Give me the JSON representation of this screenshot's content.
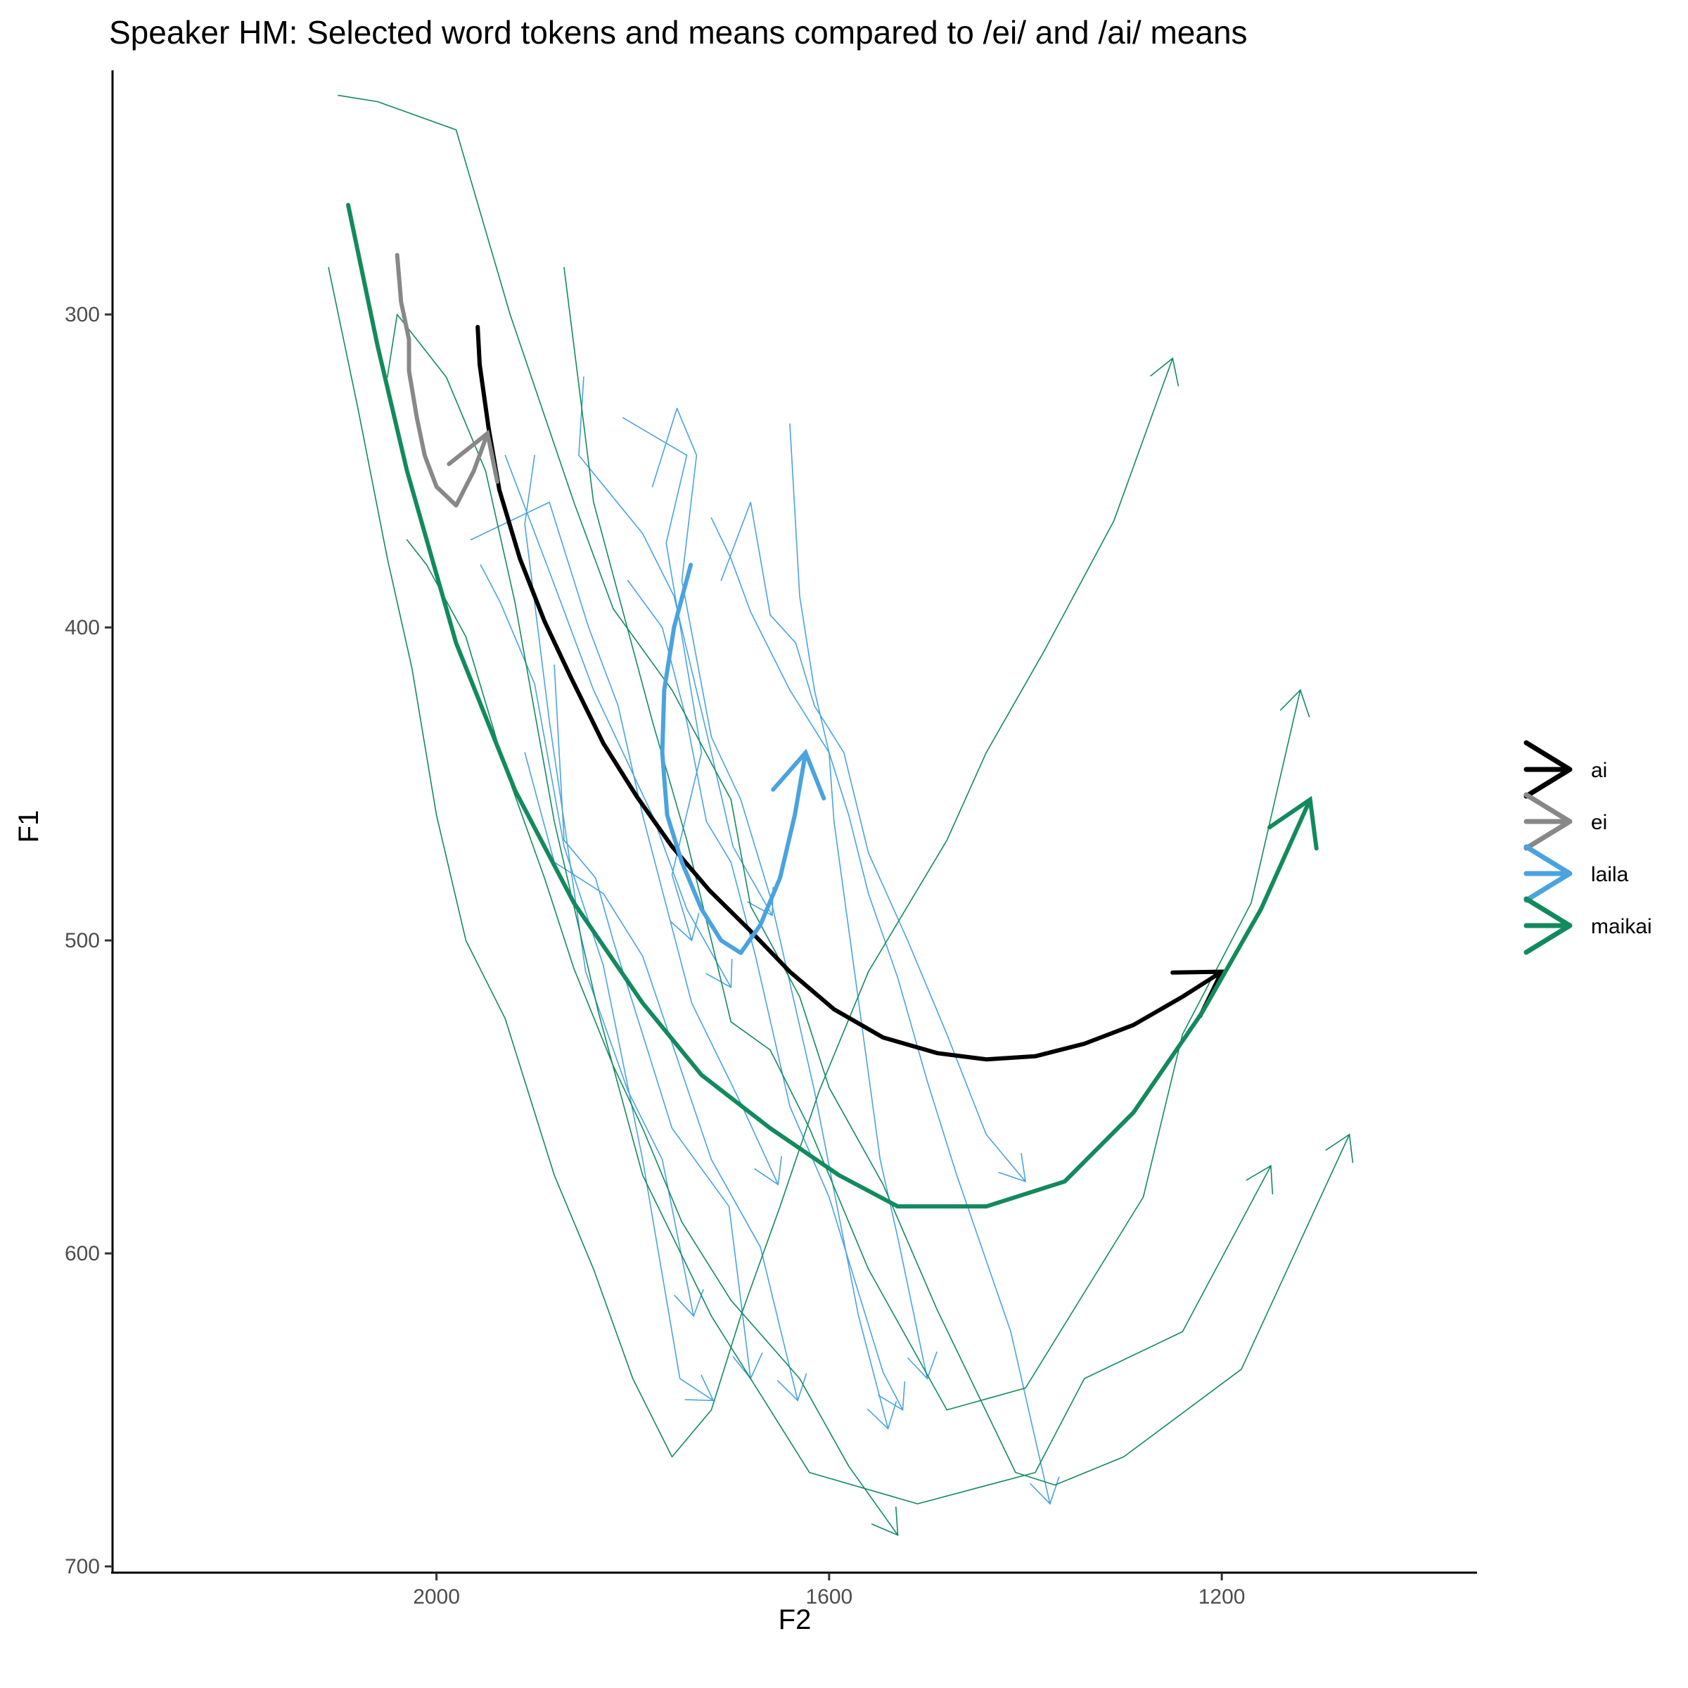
{
  "chart_data": {
    "type": "line",
    "title": "Speaker HM: Selected word tokens and means compared to /ei/ and /ai/ means",
    "xlabel": "F2",
    "ylabel": "F1",
    "xlim": [
      2330,
      940
    ],
    "ylim": [
      222,
      702
    ],
    "x_reversed": true,
    "y_reversed": true,
    "xticks": [
      2000,
      1600,
      1200
    ],
    "yticks": [
      300,
      400,
      500,
      600,
      700
    ],
    "grid": false,
    "legend_position": "right",
    "colors": {
      "ai": "#000000",
      "ei": "#888888",
      "laila": "#4aa3df",
      "maikai": "#138a5e"
    },
    "legend": [
      {
        "label": "ai",
        "key": "ai"
      },
      {
        "label": "ei",
        "key": "ei"
      },
      {
        "label": "laila",
        "key": "laila"
      },
      {
        "label": "maikai",
        "key": "maikai"
      }
    ],
    "means": [
      {
        "key": "ai",
        "points": [
          [
            1958,
            304
          ],
          [
            1956,
            316
          ],
          [
            1947,
            336
          ],
          [
            1936,
            356
          ],
          [
            1915,
            378
          ],
          [
            1890,
            398
          ],
          [
            1863,
            416
          ],
          [
            1830,
            437
          ],
          [
            1796,
            454
          ],
          [
            1760,
            470
          ],
          [
            1722,
            484
          ],
          [
            1680,
            497
          ],
          [
            1640,
            510
          ],
          [
            1595,
            522
          ],
          [
            1545,
            531
          ],
          [
            1490,
            536
          ],
          [
            1440,
            538
          ],
          [
            1390,
            537
          ],
          [
            1340,
            533
          ],
          [
            1290,
            527
          ],
          [
            1240,
            518
          ],
          [
            1200,
            510
          ]
        ]
      },
      {
        "key": "ei",
        "points": [
          [
            2040,
            281
          ],
          [
            2036,
            296
          ],
          [
            2028,
            308
          ],
          [
            2028,
            318
          ],
          [
            2020,
            333
          ],
          [
            2012,
            345
          ],
          [
            2000,
            355
          ],
          [
            1980,
            361
          ],
          [
            1962,
            350
          ],
          [
            1948,
            338
          ]
        ]
      },
      {
        "key": "laila",
        "points": [
          [
            1741,
            380
          ],
          [
            1758,
            400
          ],
          [
            1768,
            420
          ],
          [
            1770,
            440
          ],
          [
            1765,
            460
          ],
          [
            1750,
            475
          ],
          [
            1730,
            490
          ],
          [
            1710,
            500
          ],
          [
            1690,
            504
          ],
          [
            1670,
            495
          ],
          [
            1650,
            480
          ],
          [
            1635,
            460
          ],
          [
            1624,
            440
          ]
        ]
      },
      {
        "key": "maikai",
        "points": [
          [
            2090,
            265
          ],
          [
            2060,
            310
          ],
          [
            2030,
            350
          ],
          [
            1980,
            405
          ],
          [
            1920,
            452
          ],
          [
            1860,
            488
          ],
          [
            1790,
            520
          ],
          [
            1730,
            543
          ],
          [
            1660,
            560
          ],
          [
            1590,
            575
          ],
          [
            1530,
            585
          ],
          [
            1440,
            585
          ],
          [
            1360,
            577
          ],
          [
            1290,
            555
          ],
          [
            1220,
            523
          ],
          [
            1160,
            490
          ],
          [
            1110,
            455
          ]
        ]
      }
    ],
    "tokens": [
      {
        "word": "laila",
        "points": [
          [
            1810,
            333
          ],
          [
            1745,
            345
          ],
          [
            1766,
            373
          ],
          [
            1730,
            440
          ],
          [
            1760,
            479
          ],
          [
            1740,
            500
          ]
        ]
      },
      {
        "word": "laila",
        "points": [
          [
            1930,
            345
          ],
          [
            1884,
            383
          ],
          [
            1840,
            420
          ],
          [
            1780,
            460
          ],
          [
            1745,
            490
          ],
          [
            1700,
            515
          ]
        ]
      },
      {
        "word": "laila",
        "points": [
          [
            1850,
            320
          ],
          [
            1855,
            345
          ],
          [
            1790,
            370
          ],
          [
            1758,
            390
          ],
          [
            1720,
            440
          ],
          [
            1698,
            470
          ],
          [
            1658,
            492
          ]
        ]
      },
      {
        "word": "laila",
        "points": [
          [
            1965,
            372
          ],
          [
            1885,
            360
          ],
          [
            1845,
            400
          ],
          [
            1815,
            425
          ],
          [
            1790,
            460
          ],
          [
            1740,
            520
          ],
          [
            1690,
            552
          ],
          [
            1652,
            578
          ]
        ]
      },
      {
        "word": "laila",
        "points": [
          [
            1900,
            345
          ],
          [
            1910,
            367
          ],
          [
            1885,
            430
          ],
          [
            1870,
            462
          ],
          [
            1848,
            510
          ],
          [
            1805,
            548
          ],
          [
            1770,
            570
          ],
          [
            1738,
            620
          ]
        ]
      },
      {
        "word": "laila",
        "points": [
          [
            1880,
            412
          ],
          [
            1870,
            468
          ],
          [
            1838,
            480
          ],
          [
            1820,
            500
          ],
          [
            1790,
            530
          ],
          [
            1760,
            560
          ],
          [
            1702,
            585
          ],
          [
            1680,
            640
          ]
        ]
      },
      {
        "word": "laila",
        "points": [
          [
            1910,
            440
          ],
          [
            1880,
            475
          ],
          [
            1830,
            485
          ],
          [
            1790,
            505
          ],
          [
            1720,
            570
          ],
          [
            1670,
            598
          ],
          [
            1632,
            647
          ]
        ]
      },
      {
        "word": "laila",
        "points": [
          [
            1955,
            380
          ],
          [
            1935,
            392
          ],
          [
            1900,
            418
          ],
          [
            1870,
            470
          ],
          [
            1830,
            508
          ],
          [
            1790,
            570
          ],
          [
            1752,
            640
          ],
          [
            1718,
            647
          ]
        ]
      },
      {
        "word": "laila",
        "points": [
          [
            1640,
            335
          ],
          [
            1630,
            390
          ],
          [
            1615,
            420
          ],
          [
            1600,
            440
          ],
          [
            1595,
            462
          ],
          [
            1548,
            570
          ],
          [
            1530,
            595
          ],
          [
            1500,
            640
          ]
        ]
      },
      {
        "word": "laila",
        "points": [
          [
            1780,
            355
          ],
          [
            1755,
            330
          ],
          [
            1735,
            345
          ],
          [
            1750,
            385
          ],
          [
            1720,
            435
          ],
          [
            1690,
            455
          ],
          [
            1660,
            486
          ],
          [
            1615,
            548
          ],
          [
            1570,
            620
          ],
          [
            1540,
            656
          ]
        ]
      },
      {
        "word": "laila",
        "points": [
          [
            1805,
            385
          ],
          [
            1770,
            400
          ],
          [
            1745,
            430
          ],
          [
            1725,
            462
          ],
          [
            1700,
            475
          ],
          [
            1675,
            505
          ],
          [
            1640,
            553
          ],
          [
            1600,
            582
          ],
          [
            1545,
            638
          ],
          [
            1525,
            650
          ]
        ]
      },
      {
        "word": "laila",
        "points": [
          [
            1720,
            365
          ],
          [
            1700,
            378
          ],
          [
            1680,
            395
          ],
          [
            1640,
            420
          ],
          [
            1600,
            440
          ],
          [
            1580,
            460
          ],
          [
            1560,
            485
          ],
          [
            1530,
            512
          ],
          [
            1500,
            545
          ],
          [
            1470,
            575
          ],
          [
            1415,
            625
          ],
          [
            1375,
            680
          ]
        ]
      },
      {
        "word": "laila",
        "points": [
          [
            1710,
            385
          ],
          [
            1680,
            360
          ],
          [
            1660,
            396
          ],
          [
            1634,
            405
          ],
          [
            1615,
            425
          ],
          [
            1585,
            440
          ],
          [
            1560,
            472
          ],
          [
            1520,
            500
          ],
          [
            1480,
            530
          ],
          [
            1440,
            562
          ],
          [
            1400,
            577
          ]
        ]
      }
    ],
    "maikai_tokens": [
      {
        "points": [
          [
            2100,
            230
          ],
          [
            2060,
            232
          ],
          [
            1980,
            241
          ],
          [
            1925,
            300
          ],
          [
            1860,
            360
          ],
          [
            1820,
            394
          ],
          [
            1760,
            420
          ],
          [
            1700,
            455
          ],
          [
            1680,
            489
          ],
          [
            1630,
            518
          ],
          [
            1600,
            547
          ],
          [
            1545,
            578
          ],
          [
            1490,
            618
          ],
          [
            1410,
            670
          ],
          [
            1370,
            674
          ],
          [
            1300,
            665
          ],
          [
            1180,
            637
          ],
          [
            1070,
            562
          ]
        ]
      },
      {
        "points": [
          [
            2050,
            320
          ],
          [
            2040,
            300
          ],
          [
            1990,
            320
          ],
          [
            1950,
            350
          ],
          [
            1920,
            392
          ],
          [
            1880,
            462
          ],
          [
            1835,
            523
          ],
          [
            1790,
            575
          ],
          [
            1720,
            620
          ],
          [
            1620,
            670
          ],
          [
            1510,
            680
          ],
          [
            1390,
            670
          ],
          [
            1340,
            640
          ],
          [
            1240,
            625
          ],
          [
            1150,
            572
          ]
        ]
      },
      {
        "points": [
          [
            1870,
            285
          ],
          [
            1840,
            360
          ],
          [
            1810,
            395
          ],
          [
            1780,
            430
          ],
          [
            1745,
            468
          ],
          [
            1720,
            500
          ],
          [
            1700,
            526
          ],
          [
            1660,
            535
          ],
          [
            1620,
            560
          ],
          [
            1560,
            605
          ],
          [
            1480,
            650
          ],
          [
            1400,
            643
          ],
          [
            1280,
            582
          ],
          [
            1240,
            530
          ],
          [
            1170,
            488
          ],
          [
            1120,
            420
          ]
        ]
      },
      {
        "points": [
          [
            2110,
            285
          ],
          [
            2080,
            330
          ],
          [
            2050,
            378
          ],
          [
            2025,
            413
          ],
          [
            2000,
            460
          ],
          [
            1970,
            500
          ],
          [
            1930,
            525
          ],
          [
            1880,
            575
          ],
          [
            1840,
            605
          ],
          [
            1800,
            640
          ],
          [
            1760,
            665
          ],
          [
            1720,
            650
          ],
          [
            1690,
            620
          ],
          [
            1650,
            585
          ],
          [
            1610,
            548
          ],
          [
            1560,
            510
          ],
          [
            1480,
            468
          ],
          [
            1440,
            440
          ],
          [
            1380,
            407
          ],
          [
            1310,
            366
          ],
          [
            1250,
            314
          ]
        ]
      },
      {
        "points": [
          [
            2030,
            372
          ],
          [
            2010,
            380
          ],
          [
            1970,
            403
          ],
          [
            1930,
            445
          ],
          [
            1890,
            480
          ],
          [
            1860,
            509
          ],
          [
            1820,
            540
          ],
          [
            1790,
            560
          ],
          [
            1750,
            590
          ],
          [
            1700,
            615
          ],
          [
            1630,
            640
          ],
          [
            1580,
            668
          ],
          [
            1530,
            690
          ]
        ]
      }
    ]
  }
}
